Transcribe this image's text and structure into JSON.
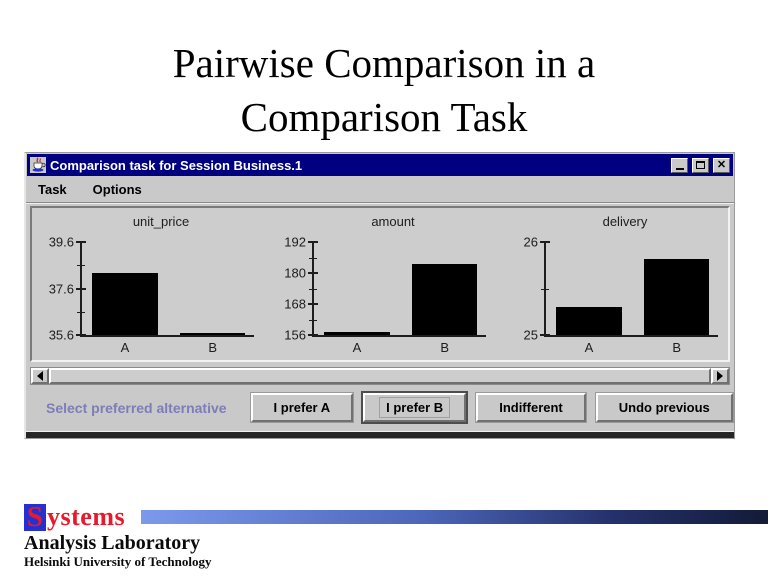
{
  "slide": {
    "title_line1": "Pairwise Comparison in a",
    "title_line2": "Comparison Task"
  },
  "window": {
    "title": "Comparison task for Session Business.1",
    "icon": "java-coffee-cup-icon",
    "controls": {
      "minimize": "minimize",
      "maximize": "maximize",
      "close": "x"
    },
    "menu": [
      {
        "label": "Task"
      },
      {
        "label": "Options"
      }
    ],
    "prompt": "Select preferred alternative",
    "buttons": [
      {
        "label": "I prefer A",
        "focused": false
      },
      {
        "label": "I prefer B",
        "focused": true
      },
      {
        "label": "Indifferent",
        "focused": false
      },
      {
        "label": "Undo previous",
        "focused": false
      }
    ],
    "colors": {
      "titlebar": "#000080",
      "chrome": "#c9c9c9",
      "prompt_text": "#7d7db8",
      "bar_fill": "#000000"
    }
  },
  "chart_data": [
    {
      "type": "bar",
      "title": "unit_price",
      "categories": [
        "A",
        "B"
      ],
      "values": [
        38.2,
        35.7
      ],
      "ylim": [
        35.6,
        39.6
      ],
      "yticks": [
        35.6,
        37.6,
        39.6
      ],
      "ytick_labels": [
        "35.6",
        "37.6",
        "39.6"
      ],
      "minor_ticks_at_midpoints": true,
      "grid": false,
      "bar_color": "#000000"
    },
    {
      "type": "bar",
      "title": "amount",
      "categories": [
        "A",
        "B"
      ],
      "values": [
        157,
        183
      ],
      "ylim": [
        156,
        192
      ],
      "yticks": [
        156,
        168,
        180,
        192
      ],
      "ytick_labels": [
        "156",
        "168",
        "180",
        "192"
      ],
      "minor_ticks_at_midpoints": true,
      "grid": false,
      "bar_color": "#000000"
    },
    {
      "type": "bar",
      "title": "delivery",
      "categories": [
        "A",
        "B"
      ],
      "values": [
        25.3,
        25.8
      ],
      "ylim": [
        25,
        26
      ],
      "yticks": [
        25,
        26
      ],
      "ytick_labels": [
        "25",
        "26"
      ],
      "minor_ticks_at_midpoints": true,
      "grid": false,
      "bar_color": "#000000"
    }
  ],
  "footer": {
    "logo_s": "S",
    "logo_rest": "ystems",
    "line2": "Analysis Laboratory",
    "line3": "Helsinki University of Technology",
    "colors": {
      "square": "#2431cf",
      "text": "#e8192c",
      "grad_from": "#7c99ec",
      "grad_to": "#131b38"
    }
  }
}
